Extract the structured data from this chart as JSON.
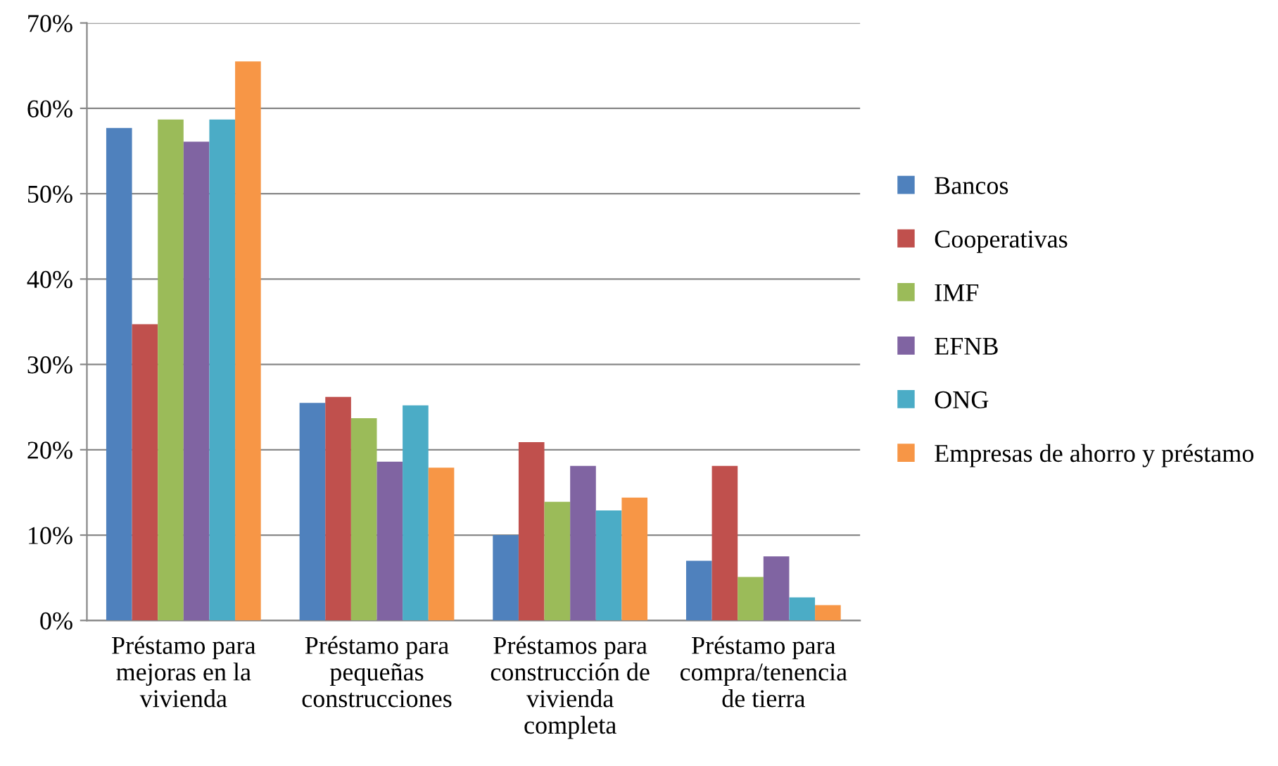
{
  "chart_data": {
    "type": "bar",
    "categories": [
      "Préstamo para\nmejoras en la\nvivienda",
      "Préstamo para\npequeñas\nconstrucciones",
      "Préstamos para\nconstrucción de\nvivienda\ncompleta",
      "Préstamo para\ncompra/tenencia\nde tierra"
    ],
    "series": [
      {
        "name": "Bancos",
        "color": "#4f81bd",
        "values": [
          57.7,
          25.5,
          10.0,
          7.0
        ]
      },
      {
        "name": "Cooperativas",
        "color": "#c0504d",
        "values": [
          34.7,
          26.2,
          20.9,
          18.1
        ]
      },
      {
        "name": "IMF",
        "color": "#9bbb59",
        "values": [
          58.7,
          23.7,
          13.9,
          5.1
        ]
      },
      {
        "name": "EFNB",
        "color": "#8064a2",
        "values": [
          56.1,
          18.6,
          18.1,
          7.5
        ]
      },
      {
        "name": "ONG",
        "color": "#4bacc6",
        "values": [
          58.7,
          25.2,
          12.9,
          2.7
        ]
      },
      {
        "name": "Empresas de ahorro y préstamo",
        "color": "#f79646",
        "values": [
          65.5,
          17.9,
          14.4,
          1.8
        ]
      }
    ],
    "ylim": [
      0,
      70
    ],
    "yticks": [
      {
        "value": 0,
        "label": "0%"
      },
      {
        "value": 10,
        "label": "10%"
      },
      {
        "value": 20,
        "label": "20%"
      },
      {
        "value": 30,
        "label": "30%"
      },
      {
        "value": 40,
        "label": "40%"
      },
      {
        "value": 50,
        "label": "50%"
      },
      {
        "value": 60,
        "label": "60%"
      },
      {
        "value": 70,
        "label": "70%"
      }
    ],
    "grid": "y",
    "legend": "right"
  }
}
